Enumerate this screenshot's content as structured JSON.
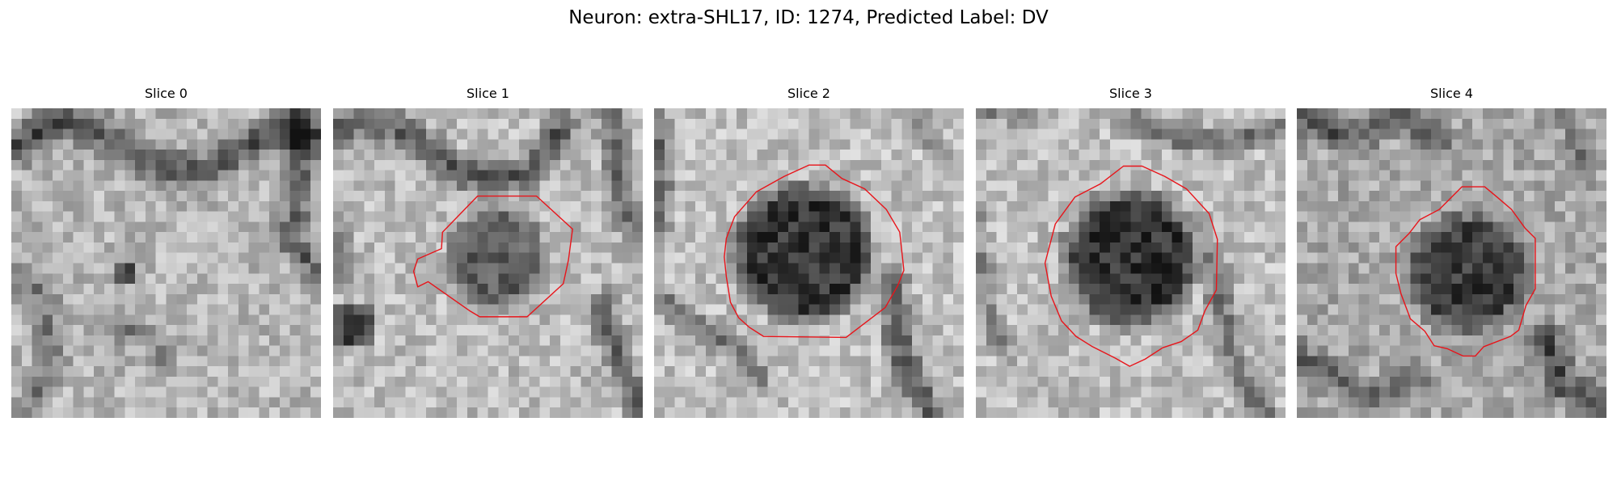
{
  "figure": {
    "title": "Neuron: extra-SHL17, ID: 1274, Predicted Label: DV",
    "outline_color": "#e8141a",
    "colormap": "grayscale"
  },
  "panels": [
    {
      "title": "Slice 0",
      "has_outline": false
    },
    {
      "title": "Slice 1",
      "has_outline": true
    },
    {
      "title": "Slice 2",
      "has_outline": true
    },
    {
      "title": "Slice 3",
      "has_outline": true
    },
    {
      "title": "Slice 4",
      "has_outline": true
    }
  ]
}
